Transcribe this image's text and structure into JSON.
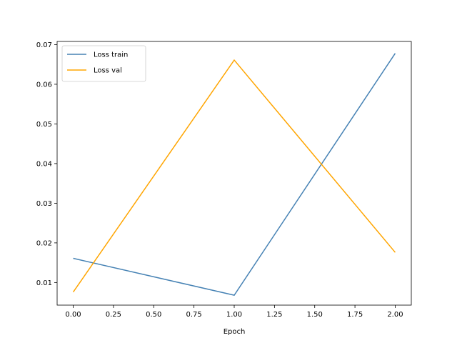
{
  "chart_data": {
    "type": "line",
    "title": "",
    "xlabel": "Epoch",
    "ylabel": "",
    "xlim": [
      -0.1,
      2.1
    ],
    "ylim": [
      0.0043,
      0.0708
    ],
    "xticks": [
      0.0,
      0.25,
      0.5,
      0.75,
      1.0,
      1.25,
      1.5,
      1.75,
      2.0
    ],
    "xtick_labels": [
      "0.00",
      "0.25",
      "0.50",
      "0.75",
      "1.00",
      "1.25",
      "1.50",
      "1.75",
      "2.00"
    ],
    "yticks": [
      0.01,
      0.02,
      0.03,
      0.04,
      0.05,
      0.06,
      0.07
    ],
    "ytick_labels": [
      "0.01",
      "0.02",
      "0.03",
      "0.04",
      "0.05",
      "0.06",
      "0.07"
    ],
    "grid": false,
    "legend_position": "top-left",
    "series": [
      {
        "name": "Loss train",
        "color": "#4682b4",
        "x": [
          0,
          1,
          2
        ],
        "y": [
          0.0161,
          0.0068,
          0.0678
        ]
      },
      {
        "name": "Loss val",
        "color": "#ffa500",
        "x": [
          0,
          1,
          2
        ],
        "y": [
          0.0076,
          0.0661,
          0.0176
        ]
      }
    ]
  }
}
